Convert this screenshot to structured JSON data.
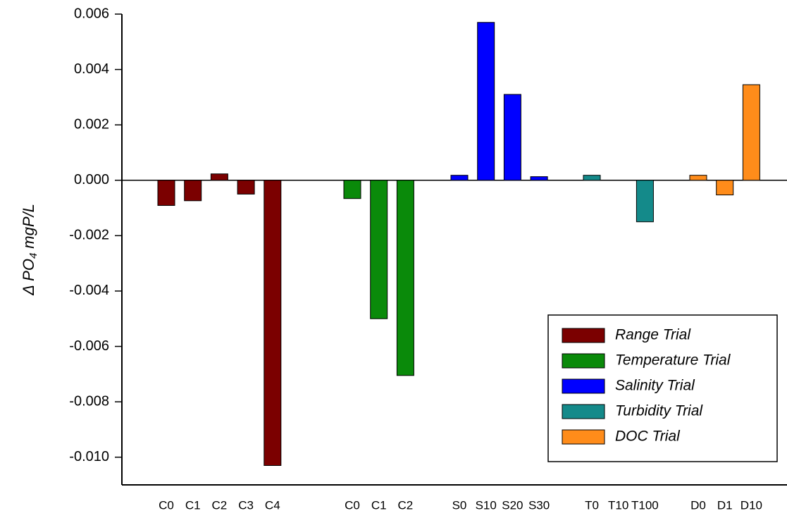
{
  "chart_data": {
    "type": "bar",
    "y_label": {
      "main": "Δ PO",
      "sub": "4",
      "unit": "mgP/L"
    },
    "ylim": [
      -0.011,
      0.006
    ],
    "yticks": [
      {
        "value": 0.006,
        "label": "0.006"
      },
      {
        "value": 0.004,
        "label": "0.004"
      },
      {
        "value": 0.002,
        "label": "0.002"
      },
      {
        "value": 0,
        "label": "0.000"
      },
      {
        "value": -0.002,
        "label": "-0.002"
      },
      {
        "value": -0.004,
        "label": "-0.004"
      },
      {
        "value": -0.006,
        "label": "-0.006"
      },
      {
        "value": -0.008,
        "label": "-0.008"
      },
      {
        "value": -0.01,
        "label": "-0.010"
      }
    ],
    "series": [
      {
        "name": "Range Trial",
        "color": "#7b0000",
        "categories": [
          "C0",
          "C1",
          "C2",
          "C3",
          "C4"
        ],
        "values": [
          -0.00091,
          -0.00074,
          0.00023,
          -0.0005,
          -0.0103
        ]
      },
      {
        "name": "Temperature Trial",
        "color": "#0a8a0a",
        "categories": [
          "C0",
          "C1",
          "C2"
        ],
        "values": [
          -0.00066,
          -0.005,
          -0.00705
        ]
      },
      {
        "name": "Salinity Trial",
        "color": "#0000ff",
        "categories": [
          "S0",
          "S10",
          "S20",
          "S30"
        ],
        "values": [
          0.00018,
          0.0057,
          0.0031,
          0.00013
        ]
      },
      {
        "name": "Turbidity Trial",
        "color": "#148a8a",
        "categories": [
          "T0",
          "T10",
          "T100"
        ],
        "values": [
          0.00018,
          0,
          -0.0015
        ]
      },
      {
        "name": "DOC Trial",
        "color": "#ff8c1a",
        "categories": [
          "D0",
          "D1",
          "D10"
        ],
        "values": [
          0.00018,
          -0.00053,
          0.00345
        ]
      }
    ]
  }
}
